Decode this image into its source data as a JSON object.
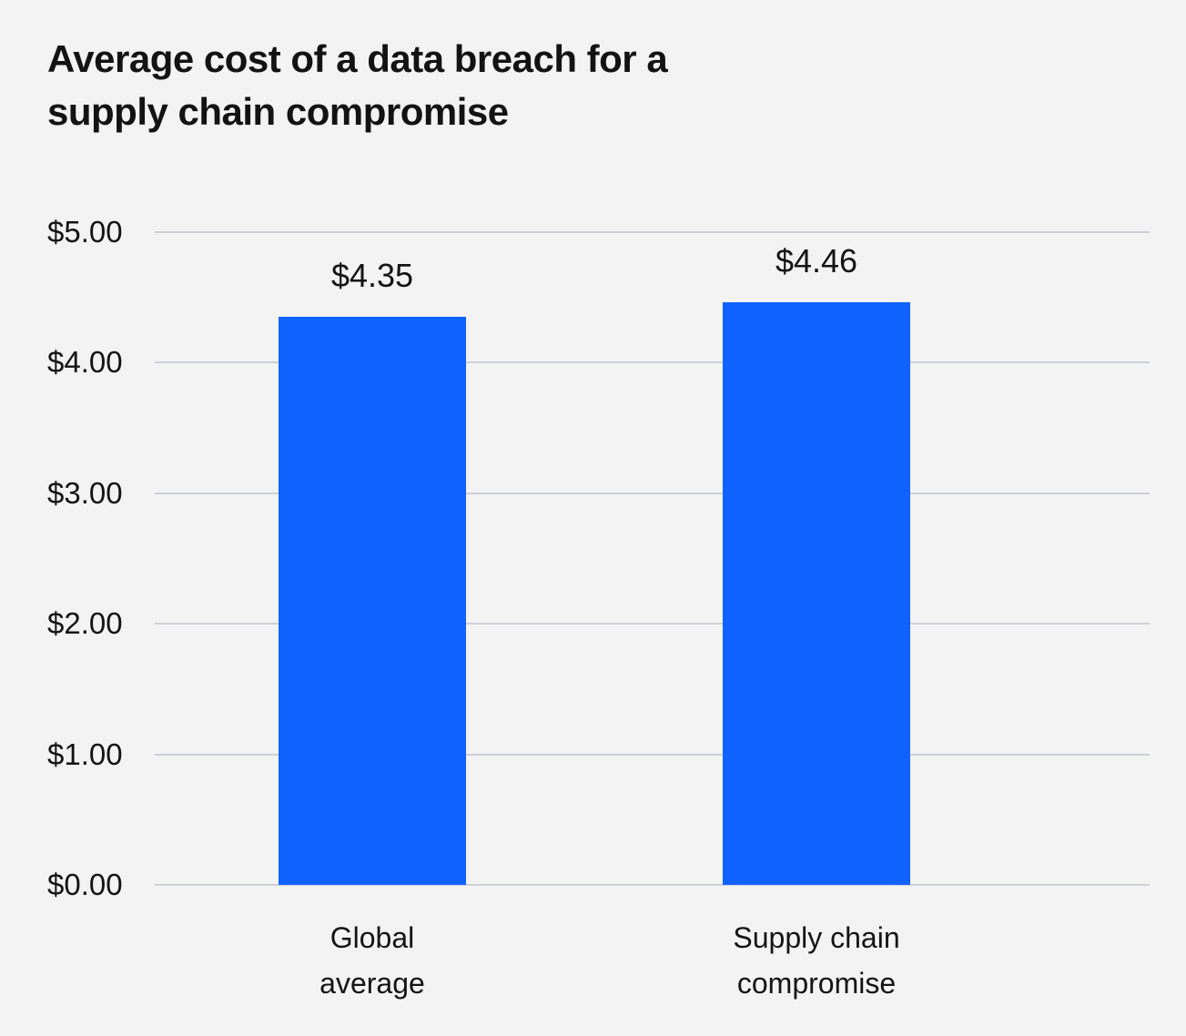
{
  "title": "Average cost of a data breach for a supply chain compromise",
  "chart_data": {
    "type": "bar",
    "title": "Average cost of a data breach for a supply chain compromise",
    "categories": [
      "Global average",
      "Supply chain compromise"
    ],
    "category_lines": [
      [
        "Global",
        "average"
      ],
      [
        "Supply chain",
        "compromise"
      ]
    ],
    "values": [
      4.35,
      4.46
    ],
    "value_labels": [
      "$4.35",
      "$4.46"
    ],
    "xlabel": "",
    "ylabel": "",
    "ylim": [
      0,
      5
    ],
    "yticks": [
      {
        "value": 0,
        "label": "$0.00"
      },
      {
        "value": 1,
        "label": "$1.00"
      },
      {
        "value": 2,
        "label": "$2.00"
      },
      {
        "value": 3,
        "label": "$3.00"
      },
      {
        "value": 4,
        "label": "$4.00"
      },
      {
        "value": 5,
        "label": "$5.00"
      }
    ],
    "grid": true,
    "legend": false,
    "colors": {
      "bar": "#0f62fe",
      "background": "#f3f3f4",
      "gridline": "#ced0d8",
      "text": "#141414"
    }
  }
}
